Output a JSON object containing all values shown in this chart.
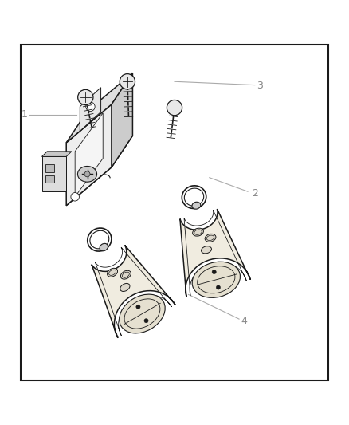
{
  "background_color": "#ffffff",
  "border_color": "#1a1a1a",
  "line_color": "#1a1a1a",
  "label_color": "#888888",
  "leader_color": "#aaaaaa",
  "fill_light": "#f2f2f2",
  "fill_mid": "#d8d8d8",
  "fill_dark": "#b8b8b8",
  "fill_cream": "#f5f2ec",
  "figsize": [
    4.38,
    5.33
  ],
  "dpi": 100,
  "border": [
    0.06,
    0.02,
    0.88,
    0.96
  ]
}
